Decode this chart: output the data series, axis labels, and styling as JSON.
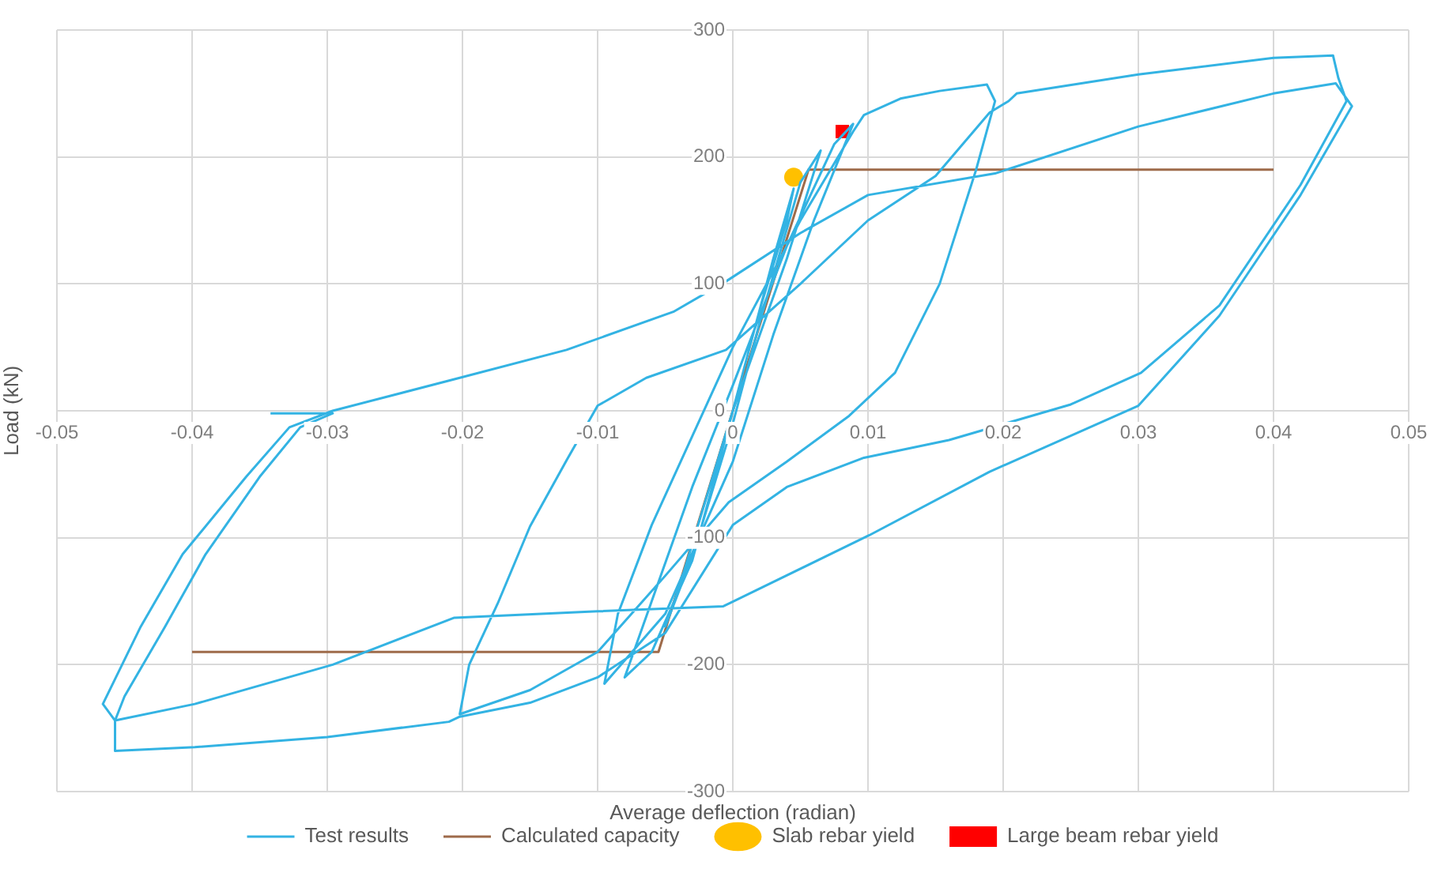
{
  "chart_data": {
    "type": "line",
    "xlabel": "Average deflection (radian)",
    "ylabel": "Load (kN)",
    "xlim": [
      -0.05,
      0.05
    ],
    "xticks": [
      -0.05,
      -0.04,
      -0.03,
      -0.02,
      -0.01,
      0,
      0.01,
      0.02,
      0.03,
      0.04,
      0.05
    ],
    "ylim": [
      -300,
      300
    ],
    "yticks": [
      -300,
      -200,
      -100,
      0,
      100,
      200,
      300
    ],
    "grid": true,
    "legend": "bottom",
    "series": [
      {
        "name": "Test results",
        "color": "#33b3e3",
        "marker": "none",
        "x": [
          0,
          0.002,
          0.004,
          0.0045,
          0.003,
          0.001,
          0,
          -0.002,
          -0.004,
          -0.005,
          -0.003,
          0,
          0.002,
          0.005,
          0.0065,
          0.004,
          0,
          -0.003,
          -0.006,
          -0.008,
          -0.006,
          -0.003,
          0,
          0.004,
          0.0075,
          0.0089,
          0.006,
          0.003,
          0,
          -0.005,
          -0.0095,
          -0.0085,
          -0.006,
          -0.003,
          0,
          0.005,
          0.0089,
          0.0097,
          0.0124,
          0.0153,
          0.0188,
          0.0194,
          0.018,
          0.0153,
          0.012,
          0.0086,
          0.004,
          -0.0003,
          -0.005,
          -0.01,
          -0.015,
          -0.0202,
          -0.0195,
          -0.0174,
          -0.015,
          -0.0123,
          -0.01,
          -0.0064,
          -0.0005,
          0.005,
          0.01,
          0.015,
          0.019,
          0.0204,
          0.021,
          0.03,
          0.04,
          0.0444,
          0.0448,
          0.0454,
          0.042,
          0.036,
          0.0302,
          0.025,
          0.016,
          0.0097,
          0.004,
          0,
          -0.005,
          -0.01,
          -0.015,
          -0.0202,
          -0.021,
          -0.03,
          -0.0398,
          -0.0457,
          -0.0457,
          -0.0466,
          -0.0438,
          -0.0407,
          -0.036,
          -0.0328,
          -0.0296,
          -0.0202,
          -0.0123,
          -0.0044,
          -0.0005,
          0.005,
          0.01,
          0.0194,
          0.03,
          0.04,
          0.0446,
          0.0458,
          0.042,
          0.036,
          0.03,
          0.019,
          0.0101,
          -0.0007,
          -0.01,
          -0.0206,
          -0.0296,
          -0.0398,
          -0.0457,
          -0.045,
          -0.042,
          -0.039,
          -0.035,
          -0.032,
          -0.0296,
          -0.0342
        ],
        "values": [
          0,
          80,
          150,
          175,
          120,
          40,
          0,
          -70,
          -140,
          -170,
          -115,
          -10,
          70,
          180,
          205,
          120,
          0,
          -118,
          -190,
          -210,
          -150,
          -60,
          20,
          130,
          210,
          226,
          150,
          60,
          -40,
          -160,
          -215,
          -160,
          -90,
          -20,
          50,
          150,
          220,
          233,
          246,
          252,
          257,
          244,
          190,
          100,
          30,
          -4,
          -40,
          -72,
          -130,
          -190,
          -220,
          -239,
          -200,
          -152,
          -91,
          -39,
          4,
          26,
          48,
          100,
          150,
          185,
          235,
          244,
          250,
          265,
          278,
          280,
          262,
          244,
          178,
          83,
          30,
          5,
          -23,
          -37,
          -60,
          -90,
          -175,
          -210,
          -230,
          -241,
          -245,
          -257,
          -265,
          -268,
          -244,
          -231,
          -170,
          -113,
          -52,
          -13,
          0,
          26,
          48,
          78,
          102,
          140,
          170,
          187,
          224,
          250,
          258,
          240,
          170,
          75,
          4,
          -48,
          -98,
          -154,
          -158,
          -163,
          -200,
          -231,
          -244,
          -225,
          -170,
          -113,
          -52,
          -13,
          -2,
          -2
        ]
      },
      {
        "name": "Calculated capacity",
        "color": "#9e6b4a",
        "marker": "none",
        "x": [
          -0.04,
          -0.0055,
          0,
          0.0056,
          0.04
        ],
        "values": [
          -190,
          -190,
          0,
          190,
          190
        ]
      },
      {
        "name": "Slab rebar yield",
        "type": "scatter",
        "color": "#ffc000",
        "marker": "circle",
        "x": [
          0.0045
        ],
        "values": [
          184
        ]
      },
      {
        "name": "Large beam rebar yield",
        "type": "scatter",
        "color": "#ff0000",
        "marker": "square",
        "x": [
          0.0081
        ],
        "values": [
          220
        ]
      }
    ]
  }
}
